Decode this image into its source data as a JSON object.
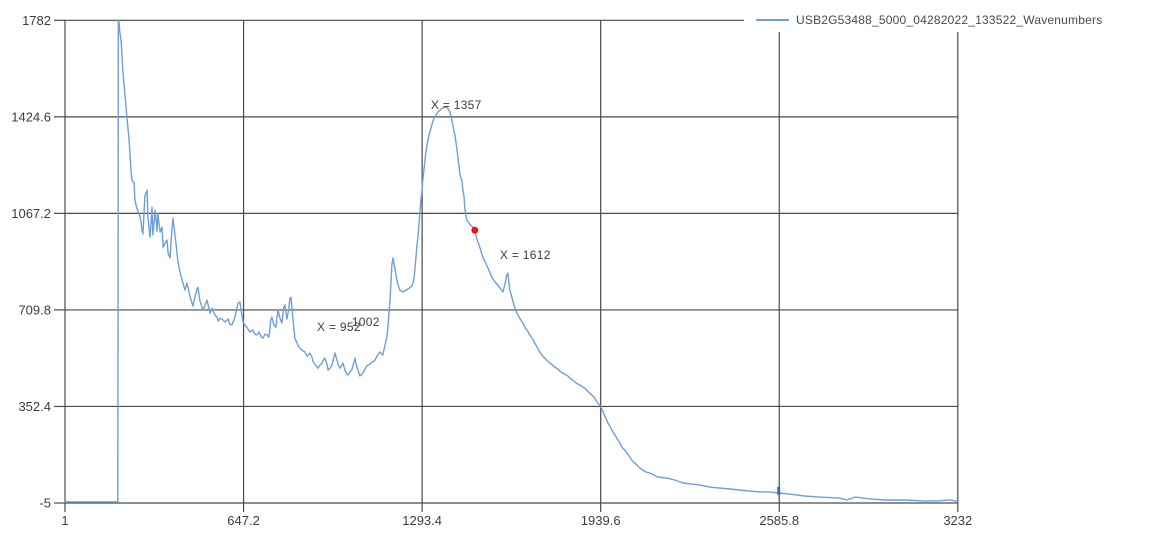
{
  "chart_data": {
    "type": "line",
    "title": "",
    "xlabel": "",
    "ylabel": "",
    "xlim": [
      1,
      3232
    ],
    "ylim": [
      -5,
      1782
    ],
    "grid": true,
    "x_ticks": [
      1,
      647.2,
      1293.4,
      1939.6,
      2585.8,
      3232
    ],
    "x_tick_labels": [
      "1",
      "647.2",
      "1293.4",
      "1939.6",
      "2585.8",
      "3232"
    ],
    "y_ticks": [
      -5,
      352.4,
      709.8,
      1067.2,
      1424.6,
      1782
    ],
    "y_tick_labels": [
      "-5",
      "352.4",
      "709.8",
      "1067.2",
      "1424.6",
      "1782"
    ],
    "legend": {
      "position": "top-right"
    },
    "colors": {
      "grid": "#4a4a4a",
      "axis_text": "#3d3d3d",
      "background": "#ffffff"
    },
    "annotations": [
      {
        "text": "1002",
        "x": 1039,
        "y": 665
      },
      {
        "text": "X = 952",
        "x": 913,
        "y": 646
      },
      {
        "text": "X = 1357",
        "x": 1325,
        "y": 1468
      },
      {
        "text": "X = 1612",
        "x": 1575,
        "y": 913
      }
    ],
    "markers": [
      {
        "x": 1484,
        "y": 1005,
        "color": "#e41a12",
        "shape": "circle"
      },
      {
        "x": 2584,
        "y": 40,
        "color": "#3a66b5",
        "shape": "square"
      }
    ],
    "series": [
      {
        "name": "USB2G53488_5000_04282022_133522_Wavenumbers",
        "color": "#6f9ed8",
        "points": [
          [
            1,
            -1
          ],
          [
            100,
            -1
          ],
          [
            189,
            -1
          ],
          [
            192,
            -1
          ],
          [
            193,
            900
          ],
          [
            194,
            1775
          ],
          [
            196,
            1782
          ],
          [
            199,
            1740
          ],
          [
            204,
            1708
          ],
          [
            211,
            1586
          ],
          [
            218,
            1504
          ],
          [
            225,
            1423
          ],
          [
            233,
            1338
          ],
          [
            240,
            1227
          ],
          [
            243,
            1190
          ],
          [
            251,
            1179
          ],
          [
            254,
            1116
          ],
          [
            261,
            1087
          ],
          [
            268,
            1068
          ],
          [
            272,
            1057
          ],
          [
            276,
            1035
          ],
          [
            280,
            1005
          ],
          [
            283,
            990
          ],
          [
            290,
            1131
          ],
          [
            298,
            1153
          ],
          [
            301,
            1053
          ],
          [
            309,
            979
          ],
          [
            316,
            1090
          ],
          [
            319,
            987
          ],
          [
            327,
            1079
          ],
          [
            334,
            1001
          ],
          [
            337,
            1068
          ],
          [
            345,
            998
          ],
          [
            352,
            1016
          ],
          [
            356,
            942
          ],
          [
            363,
            957
          ],
          [
            370,
            968
          ],
          [
            374,
            920
          ],
          [
            381,
            902
          ],
          [
            388,
            1005
          ],
          [
            392,
            1049
          ],
          [
            399,
            987
          ],
          [
            406,
            924
          ],
          [
            410,
            887
          ],
          [
            417,
            850
          ],
          [
            428,
            809
          ],
          [
            435,
            783
          ],
          [
            442,
            809
          ],
          [
            453,
            761
          ],
          [
            464,
            724
          ],
          [
            471,
            757
          ],
          [
            479,
            787
          ],
          [
            482,
            794
          ],
          [
            489,
            746
          ],
          [
            500,
            709
          ],
          [
            508,
            728
          ],
          [
            515,
            746
          ],
          [
            526,
            698
          ],
          [
            533,
            716
          ],
          [
            536,
            709
          ],
          [
            544,
            691
          ],
          [
            551,
            683
          ],
          [
            555,
            668
          ],
          [
            562,
            679
          ],
          [
            569,
            676
          ],
          [
            580,
            665
          ],
          [
            591,
            676
          ],
          [
            598,
            657
          ],
          [
            605,
            654
          ],
          [
            616,
            683
          ],
          [
            627,
            735
          ],
          [
            634,
            739
          ],
          [
            641,
            691
          ],
          [
            645,
            665
          ],
          [
            652,
            654
          ],
          [
            659,
            646
          ],
          [
            670,
            628
          ],
          [
            681,
            635
          ],
          [
            688,
            620
          ],
          [
            696,
            617
          ],
          [
            703,
            628
          ],
          [
            710,
            613
          ],
          [
            717,
            605
          ],
          [
            725,
            620
          ],
          [
            732,
            617
          ],
          [
            739,
            609
          ],
          [
            746,
            676
          ],
          [
            750,
            683
          ],
          [
            757,
            654
          ],
          [
            764,
            646
          ],
          [
            772,
            709
          ],
          [
            779,
            679
          ],
          [
            786,
            661
          ],
          [
            793,
            720
          ],
          [
            797,
            728
          ],
          [
            804,
            676
          ],
          [
            811,
            713
          ],
          [
            815,
            753
          ],
          [
            819,
            757
          ],
          [
            826,
            672
          ],
          [
            833,
            605
          ],
          [
            844,
            580
          ],
          [
            851,
            568
          ],
          [
            858,
            561
          ],
          [
            869,
            554
          ],
          [
            877,
            539
          ],
          [
            887,
            550
          ],
          [
            895,
            535
          ],
          [
            898,
            520
          ],
          [
            905,
            509
          ],
          [
            913,
            498
          ],
          [
            916,
            494
          ],
          [
            924,
            505
          ],
          [
            931,
            513
          ],
          [
            938,
            528
          ],
          [
            942,
            531
          ],
          [
            949,
            509
          ],
          [
            953,
            487
          ],
          [
            960,
            494
          ],
          [
            967,
            505
          ],
          [
            974,
            535
          ],
          [
            978,
            550
          ],
          [
            985,
            524
          ],
          [
            992,
            502
          ],
          [
            996,
            494
          ],
          [
            1003,
            505
          ],
          [
            1007,
            513
          ],
          [
            1014,
            487
          ],
          [
            1021,
            472
          ],
          [
            1025,
            469
          ],
          [
            1032,
            480
          ],
          [
            1039,
            487
          ],
          [
            1047,
            517
          ],
          [
            1050,
            531
          ],
          [
            1057,
            498
          ],
          [
            1065,
            476
          ],
          [
            1068,
            465
          ],
          [
            1075,
            472
          ],
          [
            1083,
            483
          ],
          [
            1090,
            498
          ],
          [
            1097,
            505
          ],
          [
            1104,
            509
          ],
          [
            1112,
            517
          ],
          [
            1119,
            520
          ],
          [
            1123,
            524
          ],
          [
            1130,
            539
          ],
          [
            1137,
            550
          ],
          [
            1141,
            554
          ],
          [
            1148,
            546
          ],
          [
            1151,
            543
          ],
          [
            1159,
            580
          ],
          [
            1166,
            609
          ],
          [
            1169,
            635
          ],
          [
            1177,
            746
          ],
          [
            1180,
            802
          ],
          [
            1184,
            876
          ],
          [
            1188,
            902
          ],
          [
            1191,
            887
          ],
          [
            1199,
            839
          ],
          [
            1206,
            802
          ],
          [
            1213,
            783
          ],
          [
            1224,
            776
          ],
          [
            1235,
            783
          ],
          [
            1246,
            790
          ],
          [
            1256,
            798
          ],
          [
            1260,
            809
          ],
          [
            1264,
            828
          ],
          [
            1267,
            857
          ],
          [
            1271,
            902
          ],
          [
            1274,
            942
          ],
          [
            1278,
            979
          ],
          [
            1282,
            1024
          ],
          [
            1285,
            1068
          ],
          [
            1289,
            1116
          ],
          [
            1293,
            1153
          ],
          [
            1296,
            1190
          ],
          [
            1300,
            1227
          ],
          [
            1304,
            1264
          ],
          [
            1307,
            1294
          ],
          [
            1314,
            1338
          ],
          [
            1322,
            1371
          ],
          [
            1329,
            1397
          ],
          [
            1336,
            1419
          ],
          [
            1343,
            1430
          ],
          [
            1350,
            1442
          ],
          [
            1358,
            1449
          ],
          [
            1365,
            1456
          ],
          [
            1372,
            1460
          ],
          [
            1379,
            1460
          ],
          [
            1387,
            1456
          ],
          [
            1394,
            1442
          ],
          [
            1401,
            1412
          ],
          [
            1408,
            1375
          ],
          [
            1412,
            1357
          ],
          [
            1419,
            1308
          ],
          [
            1423,
            1275
          ],
          [
            1427,
            1242
          ],
          [
            1430,
            1212
          ],
          [
            1434,
            1197
          ],
          [
            1437,
            1190
          ],
          [
            1441,
            1153
          ],
          [
            1445,
            1131
          ],
          [
            1448,
            1087
          ],
          [
            1452,
            1061
          ],
          [
            1455,
            1042
          ],
          [
            1466,
            1027
          ],
          [
            1477,
            1016
          ],
          [
            1484,
            1001
          ],
          [
            1491,
            975
          ],
          [
            1502,
            942
          ],
          [
            1513,
            905
          ],
          [
            1524,
            883
          ],
          [
            1535,
            857
          ],
          [
            1546,
            831
          ],
          [
            1557,
            813
          ],
          [
            1567,
            802
          ],
          [
            1578,
            787
          ],
          [
            1586,
            776
          ],
          [
            1593,
            805
          ],
          [
            1600,
            839
          ],
          [
            1604,
            846
          ],
          [
            1607,
            813
          ],
          [
            1611,
            783
          ],
          [
            1618,
            757
          ],
          [
            1629,
            716
          ],
          [
            1636,
            698
          ],
          [
            1647,
            679
          ],
          [
            1658,
            661
          ],
          [
            1665,
            646
          ],
          [
            1676,
            631
          ],
          [
            1683,
            617
          ],
          [
            1694,
            602
          ],
          [
            1701,
            587
          ],
          [
            1712,
            568
          ],
          [
            1719,
            554
          ],
          [
            1730,
            539
          ],
          [
            1738,
            531
          ],
          [
            1748,
            520
          ],
          [
            1756,
            513
          ],
          [
            1767,
            505
          ],
          [
            1774,
            498
          ],
          [
            1785,
            491
          ],
          [
            1792,
            483
          ],
          [
            1803,
            476
          ],
          [
            1810,
            472
          ],
          [
            1821,
            465
          ],
          [
            1828,
            457
          ],
          [
            1839,
            450
          ],
          [
            1846,
            443
          ],
          [
            1857,
            435
          ],
          [
            1864,
            432
          ],
          [
            1875,
            424
          ],
          [
            1882,
            420
          ],
          [
            1893,
            409
          ],
          [
            1900,
            402
          ],
          [
            1911,
            391
          ],
          [
            1918,
            383
          ],
          [
            1929,
            365
          ],
          [
            1937,
            354
          ],
          [
            1944,
            343
          ],
          [
            1951,
            324
          ],
          [
            1958,
            309
          ],
          [
            1966,
            291
          ],
          [
            1973,
            280
          ],
          [
            1980,
            265
          ],
          [
            1991,
            247
          ],
          [
            1998,
            235
          ],
          [
            2009,
            217
          ],
          [
            2016,
            202
          ],
          [
            2027,
            191
          ],
          [
            2034,
            180
          ],
          [
            2045,
            165
          ],
          [
            2052,
            154
          ],
          [
            2063,
            143
          ],
          [
            2070,
            136
          ],
          [
            2081,
            125
          ],
          [
            2092,
            117
          ],
          [
            2103,
            110
          ],
          [
            2117,
            106
          ],
          [
            2132,
            99
          ],
          [
            2146,
            91
          ],
          [
            2179,
            87
          ],
          [
            2208,
            80
          ],
          [
            2237,
            69
          ],
          [
            2269,
            65
          ],
          [
            2298,
            62
          ],
          [
            2334,
            54
          ],
          [
            2371,
            50
          ],
          [
            2407,
            47
          ],
          [
            2443,
            43
          ],
          [
            2479,
            39
          ],
          [
            2515,
            36
          ],
          [
            2551,
            36
          ],
          [
            2584,
            32
          ],
          [
            2624,
            28
          ],
          [
            2678,
            21
          ],
          [
            2732,
            17
          ],
          [
            2805,
            13
          ],
          [
            2830,
            6
          ],
          [
            2860,
            17
          ],
          [
            2914,
            10
          ],
          [
            2968,
            6
          ],
          [
            3040,
            6
          ],
          [
            3112,
            2
          ],
          [
            3167,
            3
          ],
          [
            3203,
            7
          ],
          [
            3232,
            0
          ]
        ]
      }
    ]
  }
}
